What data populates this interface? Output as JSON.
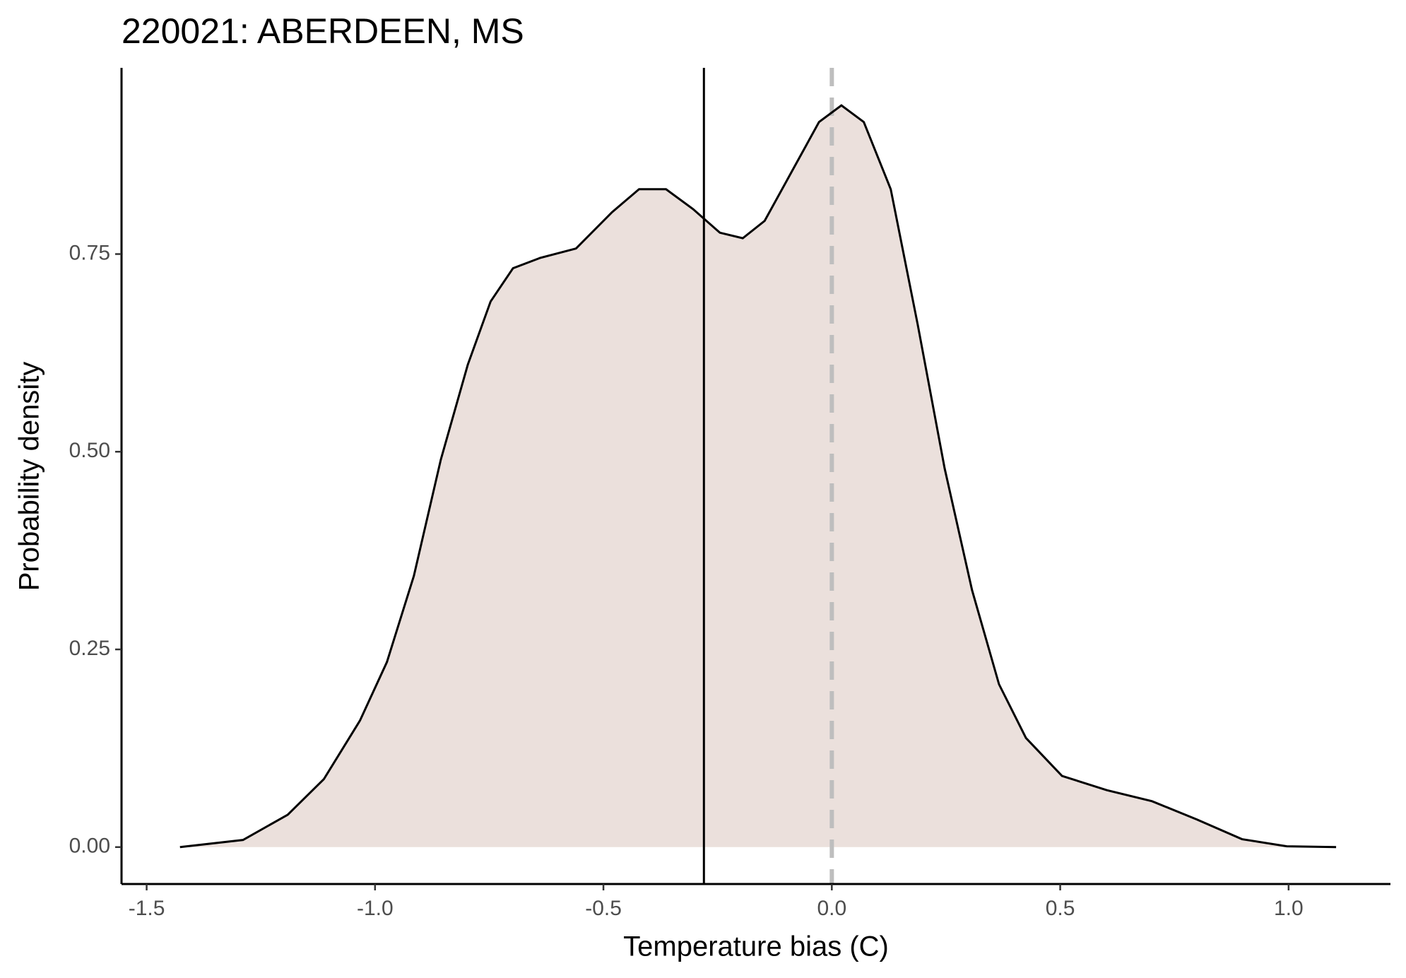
{
  "chart_data": {
    "type": "density",
    "title": "220021: ABERDEEN, MS",
    "x_label": "Temperature bias (C)",
    "y_label": "Probability density",
    "fill": "#ebe0dc",
    "color": "#000000",
    "x": [
      -1.427,
      -1.289,
      -1.191,
      -1.112,
      -1.033,
      -0.974,
      -0.915,
      -0.856,
      -0.797,
      -0.747,
      -0.698,
      -0.639,
      -0.56,
      -0.481,
      -0.422,
      -0.363,
      -0.304,
      -0.245,
      -0.195,
      -0.147,
      -0.087,
      -0.028,
      0.021,
      0.07,
      0.129,
      0.188,
      0.247,
      0.307,
      0.366,
      0.425,
      0.504,
      0.602,
      0.701,
      0.799,
      0.898,
      0.996,
      1.104
    ],
    "values": [
      0,
      0.009,
      0.041,
      0.086,
      0.16,
      0.234,
      0.343,
      0.49,
      0.61,
      0.69,
      0.732,
      0.745,
      0.757,
      0.803,
      0.832,
      0.832,
      0.807,
      0.777,
      0.77,
      0.792,
      0.855,
      0.917,
      0.938,
      0.917,
      0.832,
      0.661,
      0.479,
      0.325,
      0.206,
      0.138,
      0.09,
      0.072,
      0.058,
      0.035,
      0.01,
      0.001,
      0
    ],
    "vlines": [
      {
        "value": -0.28,
        "color": "#000000",
        "dashed": false
      },
      {
        "value": 0,
        "color": "#bebebe",
        "dashed": true
      }
    ],
    "xlim": [
      -1.555,
      1.223
    ],
    "ylim": [
      -0.0467,
      0.9855
    ],
    "xticks": [
      -1.5,
      {
        "value": -1,
        "label": "-1.0"
      },
      -0.5,
      {
        "value": 0,
        "label": "0.0"
      },
      0.5,
      {
        "value": 1,
        "label": "1.0"
      }
    ],
    "yticks": [
      {
        "value": 0,
        "label": "0.00"
      },
      0.25,
      {
        "value": 0.5,
        "label": "0.50"
      },
      0.75
    ],
    "grid": false
  }
}
